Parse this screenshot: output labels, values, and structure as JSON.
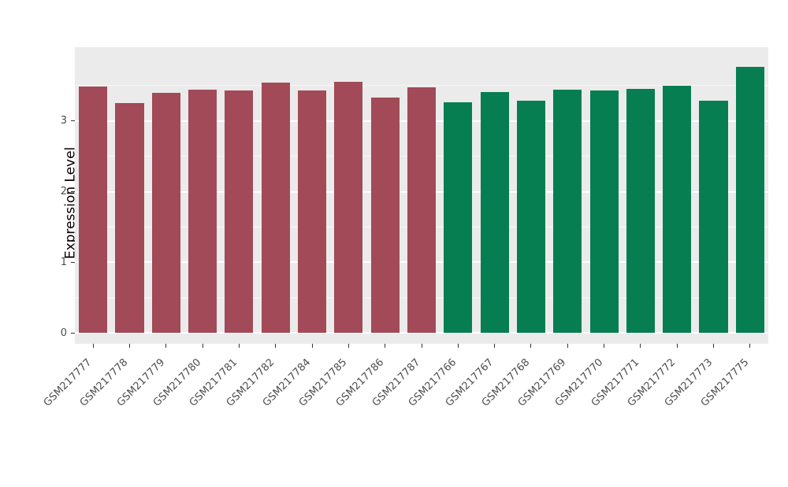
{
  "chart_data": {
    "type": "bar",
    "title": "",
    "xlabel": "",
    "ylabel": "Expression Level",
    "ylim": [
      0,
      3.9
    ],
    "yticks": [
      0,
      1,
      2,
      3
    ],
    "minor_gridlines": [
      0.5,
      1.5,
      2.5,
      3.5
    ],
    "grid": "on",
    "legend_position": "none",
    "panel_background": "#EBEBEB",
    "palette": {
      "group1": "#A24A58",
      "group2": "#067E52"
    },
    "categories": [
      "GSM217777",
      "GSM217778",
      "GSM217779",
      "GSM217780",
      "GSM217781",
      "GSM217782",
      "GSM217784",
      "GSM217785",
      "GSM217786",
      "GSM217787",
      "GSM217766",
      "GSM217767",
      "GSM217768",
      "GSM217769",
      "GSM217770",
      "GSM217771",
      "GSM217772",
      "GSM217773",
      "GSM217775"
    ],
    "values": [
      3.49,
      3.25,
      3.4,
      3.44,
      3.43,
      3.54,
      3.43,
      3.55,
      3.33,
      3.48,
      3.26,
      3.41,
      3.29,
      3.44,
      3.43,
      3.46,
      3.5,
      3.29,
      3.77
    ],
    "bar_colors": [
      "#A24A58",
      "#A24A58",
      "#A24A58",
      "#A24A58",
      "#A24A58",
      "#A24A58",
      "#A24A58",
      "#A24A58",
      "#A24A58",
      "#A24A58",
      "#067E52",
      "#067E52",
      "#067E52",
      "#067E52",
      "#067E52",
      "#067E52",
      "#067E52",
      "#067E52",
      "#067E52"
    ]
  }
}
